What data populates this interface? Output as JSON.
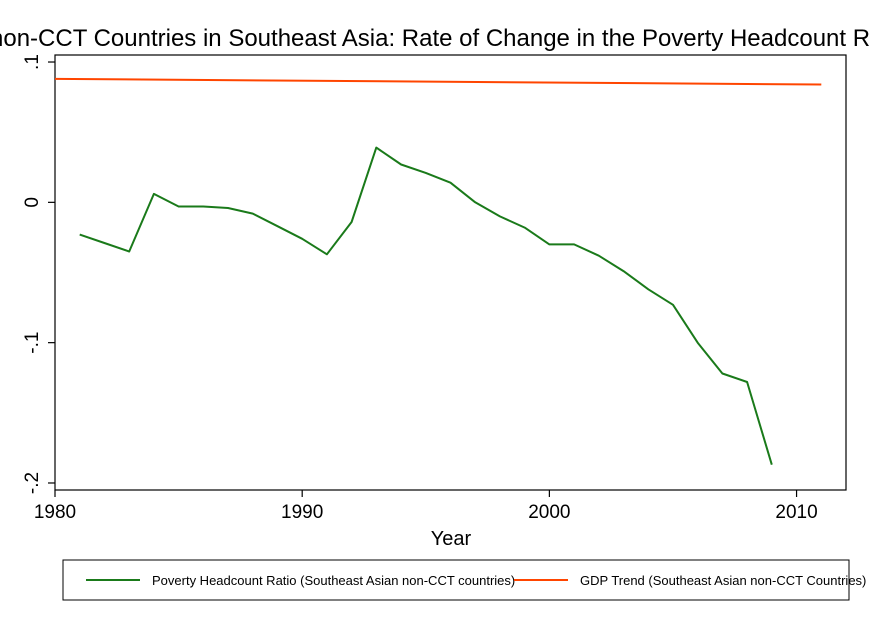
{
  "chart_data": {
    "type": "line",
    "title": "non-CCT Countries in Southeast Asia: Rate of Change in the Poverty Headcount Ratio",
    "xlabel": "Year",
    "ylabel": "",
    "xlim": [
      1980,
      2012
    ],
    "ylim": [
      -0.205,
      0.105
    ],
    "x_ticks": [
      {
        "value": 1980,
        "label": "1980"
      },
      {
        "value": 1990,
        "label": "1990"
      },
      {
        "value": 2000,
        "label": "2000"
      },
      {
        "value": 2010,
        "label": "2010"
      }
    ],
    "y_ticks": [
      {
        "value": 0.1,
        "label": ".1"
      },
      {
        "value": 0.0,
        "label": "0"
      },
      {
        "value": -0.1,
        "label": "-.1"
      },
      {
        "value": -0.2,
        "label": "-.2"
      }
    ],
    "grid": false,
    "legend_position": "bottom",
    "series": [
      {
        "name": "Poverty Headcount Ratio (Southeast Asian non-CCT countries)",
        "color": "#1a7a1a",
        "x": [
          1981,
          1982,
          1983,
          1984,
          1985,
          1986,
          1987,
          1988,
          1989,
          1990,
          1991,
          1992,
          1993,
          1994,
          1995,
          1996,
          1997,
          1998,
          1999,
          2000,
          2001,
          2002,
          2003,
          2004,
          2005,
          2006,
          2007,
          2008,
          2009
        ],
        "values": [
          -0.023,
          -0.029,
          -0.035,
          0.006,
          -0.003,
          -0.003,
          -0.004,
          -0.008,
          -0.017,
          -0.026,
          -0.037,
          -0.014,
          0.039,
          0.027,
          0.021,
          0.014,
          0.0,
          -0.01,
          -0.018,
          -0.03,
          -0.03,
          -0.038,
          -0.049,
          -0.062,
          -0.073,
          -0.1,
          -0.122,
          -0.128,
          -0.187
        ]
      },
      {
        "name": "GDP Trend (Southeast Asian non-CCT Countries)",
        "color": "#ff4500",
        "x": [
          1980,
          2011
        ],
        "values": [
          0.088,
          0.084
        ]
      }
    ]
  }
}
